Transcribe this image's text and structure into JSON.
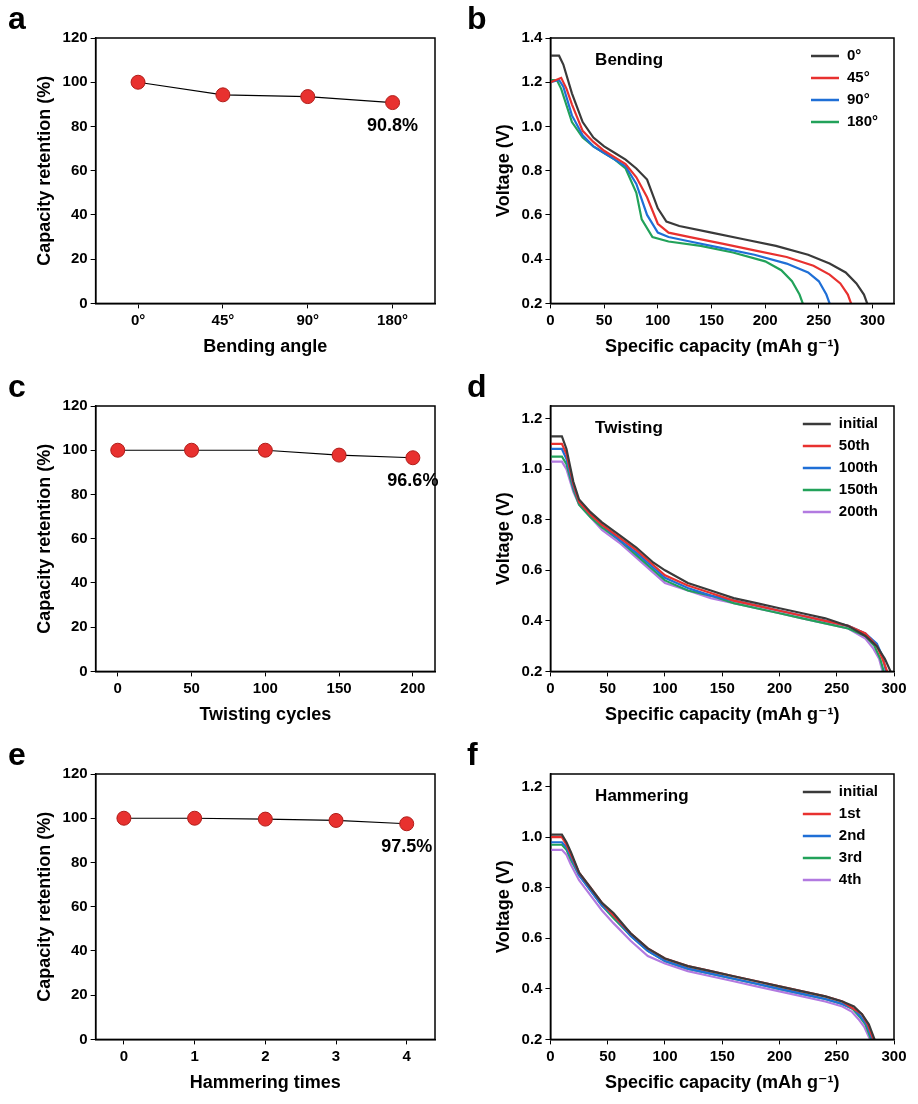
{
  "chart_data": [
    {
      "panel": "a",
      "type": "line",
      "marker": "circle",
      "color": "#e8312f",
      "x_label": "Bending angle",
      "y_label": "Capacity retention (%)",
      "categories": [
        "0°",
        "45°",
        "90°",
        "180°"
      ],
      "values": [
        100,
        94.3,
        93.5,
        90.8
      ],
      "value_labels": [
        null,
        null,
        null,
        "90.8%"
      ],
      "data_labels": true,
      "ylim": [
        0,
        120
      ],
      "yticks": [
        0,
        20,
        40,
        60,
        80,
        100,
        120
      ],
      "grid": false
    },
    {
      "panel": "b",
      "type": "line",
      "marker": "none",
      "annotation": "Bending",
      "x_label": "Specific capacity (mAh g⁻¹)",
      "y_label": "Voltage (V)",
      "xlim": [
        0,
        320
      ],
      "xticks": [
        0,
        50,
        100,
        150,
        200,
        250,
        300
      ],
      "ylim": [
        0.2,
        1.4
      ],
      "yticks": [
        0.2,
        0.4,
        0.6,
        0.8,
        {
          "value": 1,
          "label": "1.0"
        },
        1.2,
        1.4
      ],
      "grid": false,
      "legend": "upper right",
      "series": [
        {
          "name": "0°",
          "color": "#3a3a3a",
          "x": [
            0,
            8,
            12,
            20,
            30,
            40,
            50,
            60,
            70,
            80,
            90,
            100,
            108,
            120,
            150,
            180,
            210,
            240,
            260,
            275,
            285,
            292,
            295
          ],
          "values": [
            1.32,
            1.32,
            1.28,
            1.15,
            1.02,
            0.95,
            0.91,
            0.88,
            0.85,
            0.81,
            0.76,
            0.63,
            0.57,
            0.55,
            0.52,
            0.49,
            0.46,
            0.42,
            0.38,
            0.34,
            0.29,
            0.24,
            0.2
          ]
        },
        {
          "name": "45°",
          "color": "#e8312f",
          "x": [
            0,
            10,
            15,
            20,
            30,
            40,
            50,
            60,
            70,
            80,
            90,
            100,
            110,
            130,
            160,
            190,
            220,
            245,
            260,
            270,
            277,
            280
          ],
          "values": [
            1.2,
            1.22,
            1.17,
            1.1,
            0.98,
            0.93,
            0.89,
            0.86,
            0.83,
            0.77,
            0.68,
            0.56,
            0.52,
            0.5,
            0.47,
            0.44,
            0.41,
            0.37,
            0.33,
            0.29,
            0.24,
            0.2
          ]
        },
        {
          "name": "90°",
          "color": "#1f6fd6",
          "x": [
            0,
            8,
            12,
            20,
            30,
            40,
            50,
            60,
            70,
            80,
            90,
            100,
            110,
            130,
            160,
            190,
            220,
            240,
            250,
            257,
            260
          ],
          "values": [
            1.2,
            1.21,
            1.18,
            1.05,
            0.96,
            0.91,
            0.88,
            0.85,
            0.82,
            0.74,
            0.6,
            0.52,
            0.5,
            0.48,
            0.45,
            0.42,
            0.38,
            0.34,
            0.3,
            0.24,
            0.2
          ]
        },
        {
          "name": "180°",
          "color": "#22a25a",
          "x": [
            0,
            6,
            10,
            20,
            30,
            40,
            50,
            60,
            70,
            80,
            85,
            95,
            110,
            140,
            170,
            200,
            215,
            225,
            232,
            235
          ],
          "values": [
            1.21,
            1.21,
            1.17,
            1.02,
            0.95,
            0.91,
            0.88,
            0.85,
            0.81,
            0.7,
            0.58,
            0.5,
            0.48,
            0.46,
            0.43,
            0.39,
            0.35,
            0.3,
            0.24,
            0.2
          ]
        }
      ]
    },
    {
      "panel": "c",
      "type": "line",
      "marker": "circle",
      "color": "#e8312f",
      "x_label": "Twisting cycles",
      "y_label": "Capacity retention (%)",
      "x": [
        0,
        50,
        100,
        150,
        200
      ],
      "values": [
        100,
        100,
        100,
        97.8,
        96.6
      ],
      "value_labels": [
        null,
        null,
        null,
        null,
        "96.6%"
      ],
      "data_labels": true,
      "xlim": [
        -15,
        215
      ],
      "xticks": [
        0,
        50,
        100,
        150,
        200
      ],
      "ylim": [
        0,
        120
      ],
      "yticks": [
        0,
        20,
        40,
        60,
        80,
        100,
        120
      ],
      "grid": false
    },
    {
      "panel": "d",
      "type": "line",
      "marker": "none",
      "annotation": "Twisting",
      "x_label": "Specific capacity (mAh g⁻¹)",
      "y_label": "Voltage (V)",
      "xlim": [
        0,
        300
      ],
      "xticks": [
        0,
        50,
        100,
        150,
        200,
        250,
        300
      ],
      "ylim": [
        0.2,
        1.25
      ],
      "yticks": [
        0.2,
        0.4,
        0.6,
        0.8,
        {
          "value": 1,
          "label": "1.0"
        },
        1.2
      ],
      "grid": false,
      "legend": "upper right",
      "series": [
        {
          "name": "initial",
          "color": "#3a3a3a",
          "x": [
            0,
            10,
            14,
            20,
            25,
            35,
            45,
            60,
            75,
            90,
            100,
            120,
            140,
            160,
            180,
            200,
            220,
            240,
            260,
            275,
            285,
            292,
            297
          ],
          "values": [
            1.13,
            1.13,
            1.08,
            0.95,
            0.88,
            0.83,
            0.79,
            0.74,
            0.69,
            0.63,
            0.6,
            0.55,
            0.52,
            0.49,
            0.47,
            0.45,
            0.43,
            0.41,
            0.38,
            0.34,
            0.3,
            0.25,
            0.2
          ]
        },
        {
          "name": "50th",
          "color": "#e8312f",
          "x": [
            0,
            10,
            14,
            20,
            25,
            35,
            45,
            60,
            75,
            90,
            100,
            120,
            140,
            160,
            180,
            200,
            220,
            240,
            260,
            275,
            285,
            290,
            294
          ],
          "values": [
            1.1,
            1.1,
            1.06,
            0.94,
            0.87,
            0.82,
            0.78,
            0.73,
            0.68,
            0.62,
            0.58,
            0.54,
            0.51,
            0.48,
            0.46,
            0.44,
            0.42,
            0.4,
            0.38,
            0.35,
            0.3,
            0.25,
            0.2
          ]
        },
        {
          "name": "100th",
          "color": "#1f6fd6",
          "x": [
            0,
            10,
            14,
            20,
            25,
            35,
            45,
            60,
            75,
            90,
            100,
            120,
            140,
            160,
            180,
            200,
            220,
            240,
            260,
            275,
            285,
            290,
            293
          ],
          "values": [
            1.08,
            1.08,
            1.04,
            0.93,
            0.87,
            0.82,
            0.78,
            0.72,
            0.67,
            0.61,
            0.57,
            0.53,
            0.5,
            0.48,
            0.46,
            0.44,
            0.42,
            0.4,
            0.38,
            0.35,
            0.31,
            0.26,
            0.2
          ]
        },
        {
          "name": "150th",
          "color": "#22a25a",
          "x": [
            0,
            10,
            14,
            20,
            25,
            35,
            45,
            60,
            75,
            90,
            100,
            120,
            140,
            160,
            180,
            200,
            220,
            240,
            260,
            275,
            283,
            288,
            291
          ],
          "values": [
            1.05,
            1.05,
            1.02,
            0.92,
            0.86,
            0.81,
            0.77,
            0.72,
            0.66,
            0.6,
            0.56,
            0.52,
            0.5,
            0.47,
            0.45,
            0.43,
            0.41,
            0.39,
            0.37,
            0.34,
            0.3,
            0.25,
            0.2
          ]
        },
        {
          "name": "200th",
          "color": "#b27ae0",
          "x": [
            0,
            10,
            14,
            20,
            25,
            35,
            45,
            60,
            75,
            90,
            100,
            120,
            140,
            160,
            180,
            200,
            220,
            240,
            260,
            275,
            282,
            287,
            290
          ],
          "values": [
            1.03,
            1.03,
            1.0,
            0.91,
            0.86,
            0.81,
            0.76,
            0.71,
            0.65,
            0.59,
            0.55,
            0.52,
            0.49,
            0.47,
            0.45,
            0.43,
            0.41,
            0.39,
            0.37,
            0.33,
            0.29,
            0.25,
            0.2
          ]
        }
      ]
    },
    {
      "panel": "e",
      "type": "line",
      "marker": "circle",
      "color": "#e8312f",
      "x_label": "Hammering times",
      "y_label": "Capacity retention (%)",
      "x": [
        0,
        1,
        2,
        3,
        4
      ],
      "values": [
        100,
        100,
        99.6,
        99.0,
        97.5
      ],
      "value_labels": [
        null,
        null,
        null,
        null,
        "97.5%"
      ],
      "data_labels": true,
      "xlim": [
        -0.4,
        4.4
      ],
      "xticks": [
        0,
        1,
        2,
        3,
        4
      ],
      "ylim": [
        0,
        120
      ],
      "yticks": [
        0,
        20,
        40,
        60,
        80,
        100,
        120
      ],
      "grid": false
    },
    {
      "panel": "f",
      "type": "line",
      "marker": "none",
      "annotation": "Hammering",
      "x_label": "Specific capacity (mAh g⁻¹)",
      "y_label": "Voltage (V)",
      "xlim": [
        0,
        300
      ],
      "xticks": [
        0,
        50,
        100,
        150,
        200,
        250,
        300
      ],
      "ylim": [
        0.2,
        1.25
      ],
      "yticks": [
        0.2,
        0.4,
        0.6,
        0.8,
        {
          "value": 1,
          "label": "1.0"
        },
        1.2
      ],
      "grid": false,
      "legend": "upper right",
      "series": [
        {
          "name": "initial",
          "color": "#3a3a3a",
          "x": [
            0,
            10,
            14,
            18,
            25,
            35,
            45,
            55,
            70,
            85,
            100,
            120,
            140,
            160,
            180,
            200,
            220,
            240,
            255,
            265,
            272,
            278,
            283
          ],
          "values": [
            1.01,
            1.01,
            0.98,
            0.94,
            0.86,
            0.8,
            0.74,
            0.7,
            0.62,
            0.56,
            0.52,
            0.49,
            0.47,
            0.45,
            0.43,
            0.41,
            0.39,
            0.37,
            0.35,
            0.33,
            0.3,
            0.26,
            0.2
          ]
        },
        {
          "name": "1st",
          "color": "#e8312f",
          "x": [
            0,
            10,
            14,
            18,
            25,
            35,
            45,
            55,
            70,
            85,
            100,
            120,
            140,
            160,
            180,
            200,
            220,
            240,
            255,
            265,
            272,
            277,
            282
          ],
          "values": [
            1.0,
            1.0,
            0.97,
            0.93,
            0.86,
            0.8,
            0.74,
            0.69,
            0.62,
            0.56,
            0.52,
            0.49,
            0.47,
            0.45,
            0.43,
            0.41,
            0.39,
            0.37,
            0.35,
            0.32,
            0.3,
            0.26,
            0.2
          ]
        },
        {
          "name": "2nd",
          "color": "#1f6fd6",
          "x": [
            0,
            10,
            14,
            18,
            25,
            35,
            45,
            55,
            70,
            85,
            100,
            120,
            140,
            160,
            180,
            200,
            220,
            240,
            255,
            265,
            271,
            276,
            281
          ],
          "values": [
            0.98,
            0.98,
            0.96,
            0.92,
            0.85,
            0.79,
            0.73,
            0.69,
            0.61,
            0.55,
            0.51,
            0.48,
            0.46,
            0.44,
            0.42,
            0.4,
            0.38,
            0.36,
            0.34,
            0.32,
            0.29,
            0.26,
            0.2
          ]
        },
        {
          "name": "3rd",
          "color": "#22a25a",
          "x": [
            0,
            10,
            14,
            18,
            25,
            35,
            45,
            55,
            70,
            85,
            100,
            120,
            140,
            160,
            180,
            200,
            220,
            240,
            255,
            264,
            270,
            275,
            280
          ],
          "values": [
            0.97,
            0.97,
            0.95,
            0.91,
            0.85,
            0.79,
            0.73,
            0.68,
            0.61,
            0.55,
            0.51,
            0.48,
            0.46,
            0.44,
            0.42,
            0.4,
            0.38,
            0.36,
            0.34,
            0.32,
            0.29,
            0.26,
            0.2
          ]
        },
        {
          "name": "4th",
          "color": "#b27ae0",
          "x": [
            0,
            10,
            14,
            18,
            25,
            35,
            45,
            55,
            70,
            85,
            100,
            120,
            140,
            160,
            180,
            200,
            220,
            240,
            255,
            263,
            269,
            274,
            279
          ],
          "values": [
            0.95,
            0.95,
            0.93,
            0.89,
            0.83,
            0.77,
            0.71,
            0.66,
            0.59,
            0.53,
            0.5,
            0.47,
            0.45,
            0.43,
            0.41,
            0.39,
            0.37,
            0.35,
            0.33,
            0.31,
            0.28,
            0.25,
            0.2
          ]
        }
      ]
    }
  ]
}
